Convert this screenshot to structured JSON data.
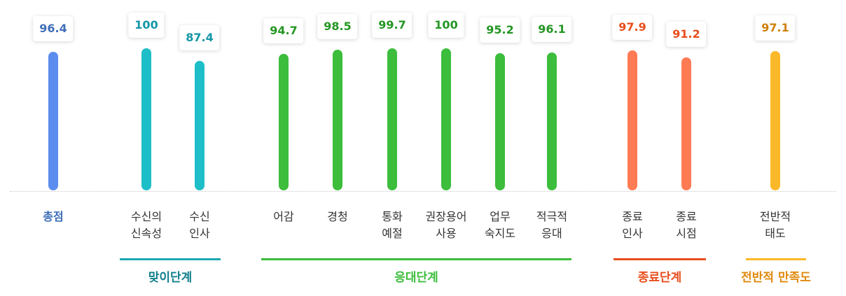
{
  "chart_data": {
    "type": "bar",
    "title": "",
    "xlabel": "",
    "ylabel": "",
    "ylim": [
      0,
      100
    ],
    "grid": false,
    "categories": [
      {
        "id": "total",
        "lines": [
          "총점"
        ],
        "value": 96.4,
        "group": "total"
      },
      {
        "id": "answer-speed",
        "lines": [
          "수신의",
          "신속성"
        ],
        "value": 100,
        "group": "greeting"
      },
      {
        "id": "receive-greeting",
        "lines": [
          "수신",
          "인사"
        ],
        "value": 87.4,
        "group": "greeting"
      },
      {
        "id": "tone",
        "lines": [
          "어감"
        ],
        "value": 94.7,
        "group": "response"
      },
      {
        "id": "listening",
        "lines": [
          "경청"
        ],
        "value": 98.5,
        "group": "response"
      },
      {
        "id": "call-manner",
        "lines": [
          "통화",
          "예절"
        ],
        "value": 99.7,
        "group": "response"
      },
      {
        "id": "recommended-terms",
        "lines": [
          "권장용어",
          "사용"
        ],
        "value": 100,
        "group": "response"
      },
      {
        "id": "task-knowledge",
        "lines": [
          "업무",
          "숙지도"
        ],
        "value": 95.2,
        "group": "response"
      },
      {
        "id": "active-response",
        "lines": [
          "적극적",
          "응대"
        ],
        "value": 96.1,
        "group": "response"
      },
      {
        "id": "closing-greeting",
        "lines": [
          "종료",
          "인사"
        ],
        "value": 97.9,
        "group": "closing"
      },
      {
        "id": "closing-time",
        "lines": [
          "종료",
          "시점"
        ],
        "value": 91.2,
        "group": "closing"
      },
      {
        "id": "overall-attitude",
        "lines": [
          "전반적",
          "태도"
        ],
        "value": 97.1,
        "group": "overall"
      }
    ],
    "groups": {
      "total": {
        "label": "",
        "bar_color": "#5b8def",
        "value_color": "#3f6fb8",
        "category_color": "#3f6fb8"
      },
      "greeting": {
        "label": "맞이단계",
        "bar_color": "#1ebec8",
        "value_color": "#1596a6",
        "category_color": "#333333",
        "line_color": "#1ea8b4",
        "label_color": "#127f8c"
      },
      "response": {
        "label": "응대단계",
        "bar_color": "#3cbd3c",
        "value_color": "#249624",
        "category_color": "#333333",
        "line_color": "#3cbd3c",
        "label_color": "#3cbd3c"
      },
      "closing": {
        "label": "종료단계",
        "bar_color": "#ff7b54",
        "value_color": "#e84e1c",
        "category_color": "#333333",
        "line_color": "#e84e1c",
        "label_color": "#e84e1c"
      },
      "overall": {
        "label": "전반적 만족도",
        "bar_color": "#fbb829",
        "value_color": "#cf7f09",
        "category_color": "#333333",
        "line_color": "#fbb829",
        "label_color": "#e08a0d"
      }
    }
  }
}
